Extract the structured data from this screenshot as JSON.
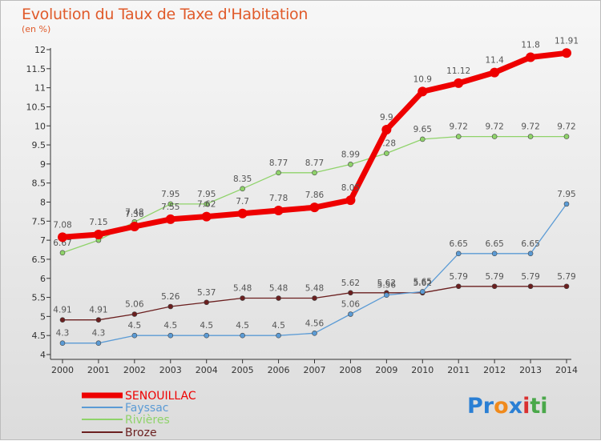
{
  "title": "Evolution du Taux de Taxe d'Habitation",
  "subtitle": "(en %)",
  "logo": {
    "text": "Proxiti",
    "letters": [
      "P",
      "r",
      "o",
      "x",
      "i",
      "t",
      "i"
    ],
    "colors": [
      "#2a7fd4",
      "#2a7fd4",
      "#f08a1c",
      "#2a7fd4",
      "#d93030",
      "#4aa84a",
      "#4aa84a"
    ]
  },
  "chart_data": {
    "type": "line",
    "title": "Evolution du Taux de Taxe d'Habitation",
    "ylabel": "(en %)",
    "xlabel": "",
    "x": [
      2000,
      2001,
      2002,
      2003,
      2004,
      2005,
      2006,
      2007,
      2008,
      2009,
      2010,
      2011,
      2012,
      2013,
      2014
    ],
    "ylim": [
      4,
      12
    ],
    "yticks": [
      4,
      4.5,
      5,
      5.5,
      6,
      6.5,
      7,
      7.5,
      8,
      8.5,
      9,
      9.5,
      10,
      10.5,
      11,
      11.5,
      12
    ],
    "grid": false,
    "legend_position": "bottom-left",
    "series": [
      {
        "name": "Broze",
        "color": "#6b1f1f",
        "width": 1.3,
        "marker": 3,
        "values": [
          4.91,
          4.91,
          5.06,
          5.26,
          5.37,
          5.48,
          5.48,
          5.48,
          5.62,
          5.62,
          5.62,
          5.79,
          5.79,
          5.79,
          5.79
        ]
      },
      {
        "name": "Fayssac",
        "color": "#5b9bd5",
        "width": 1.3,
        "marker": 3,
        "values": [
          4.3,
          4.3,
          4.5,
          4.5,
          4.5,
          4.5,
          4.5,
          4.56,
          5.06,
          5.56,
          5.65,
          6.65,
          6.65,
          6.65,
          7.95
        ]
      },
      {
        "name": "Rivières",
        "color": "#8fd36a",
        "width": 1.3,
        "marker": 3,
        "values": [
          6.67,
          7.0,
          7.48,
          7.95,
          7.95,
          8.35,
          8.77,
          8.77,
          8.99,
          9.28,
          9.65,
          9.72,
          9.72,
          9.72,
          9.72
        ]
      },
      {
        "name": "SENOUILLAC",
        "color": "#ee0000",
        "width": 7,
        "marker": 6,
        "values": [
          7.08,
          7.15,
          7.36,
          7.55,
          7.62,
          7.7,
          7.78,
          7.86,
          8.05,
          9.9,
          10.9,
          11.12,
          11.4,
          11.8,
          11.91
        ]
      }
    ],
    "data_labels": {
      "Broze": [
        "4.91",
        "4.91",
        "5.06",
        "5.26",
        "5.37",
        "5.48",
        "5.48",
        "5.48",
        "5.62",
        "5.62",
        "5.62",
        "5.79",
        "5.79",
        "5.79",
        "5.79"
      ],
      "Fayssac": [
        "4.3",
        "4.3",
        "4.5",
        "4.5",
        "4.5",
        "4.5",
        "4.5",
        "4.56",
        "5.06",
        "5.56",
        "5.65",
        "6.65",
        "6.65",
        "6.65",
        "7.95"
      ],
      "Rivières": [
        "6.67",
        "",
        "7.48",
        "7.95",
        "7.95",
        "8.35",
        "8.77",
        "8.77",
        "8.99",
        "9.28",
        "9.65",
        "9.72",
        "9.72",
        "9.72",
        "9.72"
      ],
      "SENOUILLAC": [
        "7.08",
        "7.15",
        "7.36",
        "7.55",
        "7.62",
        "7.7",
        "7.78",
        "7.86",
        "8.05",
        "9.9",
        "10.9",
        "11.12",
        "11.4",
        "11.8",
        "11.91"
      ]
    },
    "legend": [
      "SENOUILLAC",
      "Fayssac",
      "Rivières",
      "Broze"
    ]
  }
}
